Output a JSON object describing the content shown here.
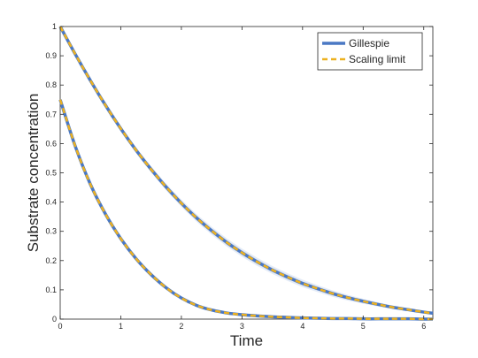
{
  "chart_data": {
    "type": "line",
    "xlabel": "Time",
    "ylabel": "Substrate concentration",
    "xlim": [
      0,
      6.15
    ],
    "ylim": [
      0,
      1
    ],
    "xticks": [
      0,
      1,
      2,
      3,
      4,
      5,
      6
    ],
    "yticks": [
      0,
      0.1,
      0.2,
      0.3,
      0.4,
      0.5,
      0.6,
      0.7,
      0.8,
      0.9,
      1
    ],
    "ytick_labels": [
      "0",
      "0.1",
      "0.2",
      "0.3",
      "0.4",
      "0.5",
      "0.6",
      "0.7",
      "0.8",
      "0.9",
      "1"
    ],
    "grid": false,
    "legend": {
      "placement": "top-right",
      "entries": [
        "Gillespie",
        "Scaling limit"
      ]
    },
    "colors": {
      "gillespie": "#4a78c4",
      "scaling_limit": "#edb120",
      "band": "#b4c8e8",
      "axis": "#262626"
    },
    "series": [
      {
        "name": "Gillespie",
        "style": "solid",
        "curves": [
          {
            "x": [
              0,
              0.25,
              0.5,
              0.75,
              1,
              1.25,
              1.5,
              1.75,
              2,
              2.25,
              2.5,
              2.75,
              3,
              3.25,
              3.5,
              3.75,
              4,
              4.25,
              4.5,
              4.75,
              5,
              5.25,
              5.5,
              5.75,
              6,
              6.15
            ],
            "y": [
              1,
              0.905,
              0.815,
              0.73,
              0.651,
              0.578,
              0.512,
              0.451,
              0.396,
              0.346,
              0.302,
              0.262,
              0.227,
              0.196,
              0.168,
              0.144,
              0.122,
              0.104,
              0.087,
              0.073,
              0.061,
              0.05,
              0.04,
              0.032,
              0.024,
              0.02
            ]
          },
          {
            "x": [
              0,
              0.25,
              0.5,
              0.75,
              1,
              1.25,
              1.5,
              1.75,
              2,
              2.25,
              2.5,
              2.75,
              3,
              3.25,
              3.5,
              3.75,
              4,
              4.25,
              4.5,
              4.75,
              5,
              5.25,
              5.5,
              5.75,
              6,
              6.15
            ],
            "y": [
              0.75,
              0.59,
              0.46,
              0.358,
              0.275,
              0.207,
              0.152,
              0.107,
              0.072,
              0.047,
              0.031,
              0.021,
              0.015,
              0.011,
              0.008,
              0.006,
              0.004,
              0.003,
              0.002,
              0.002,
              0.001,
              0.001,
              0.001,
              0.001,
              0,
              0
            ]
          }
        ]
      },
      {
        "name": "Scaling limit",
        "style": "dashed",
        "curves": [
          {
            "x": [
              0,
              0.25,
              0.5,
              0.75,
              1,
              1.25,
              1.5,
              1.75,
              2,
              2.25,
              2.5,
              2.75,
              3,
              3.25,
              3.5,
              3.75,
              4,
              4.25,
              4.5,
              4.75,
              5,
              5.25,
              5.5,
              5.75,
              6,
              6.15
            ],
            "y": [
              1,
              0.905,
              0.815,
              0.73,
              0.651,
              0.578,
              0.512,
              0.451,
              0.396,
              0.346,
              0.302,
              0.262,
              0.227,
              0.196,
              0.168,
              0.144,
              0.122,
              0.104,
              0.087,
              0.073,
              0.061,
              0.05,
              0.04,
              0.032,
              0.024,
              0.02
            ]
          },
          {
            "x": [
              0,
              0.25,
              0.5,
              0.75,
              1,
              1.25,
              1.5,
              1.75,
              2,
              2.25,
              2.5,
              2.75,
              3,
              3.25,
              3.5,
              3.75,
              4,
              4.25,
              4.5,
              4.75,
              5,
              5.25,
              5.5,
              5.75,
              6,
              6.15
            ],
            "y": [
              0.75,
              0.59,
              0.46,
              0.358,
              0.275,
              0.207,
              0.152,
              0.107,
              0.072,
              0.047,
              0.031,
              0.021,
              0.015,
              0.011,
              0.008,
              0.006,
              0.004,
              0.003,
              0.002,
              0.002,
              0.001,
              0.001,
              0.001,
              0.001,
              0,
              0
            ]
          }
        ]
      }
    ]
  }
}
